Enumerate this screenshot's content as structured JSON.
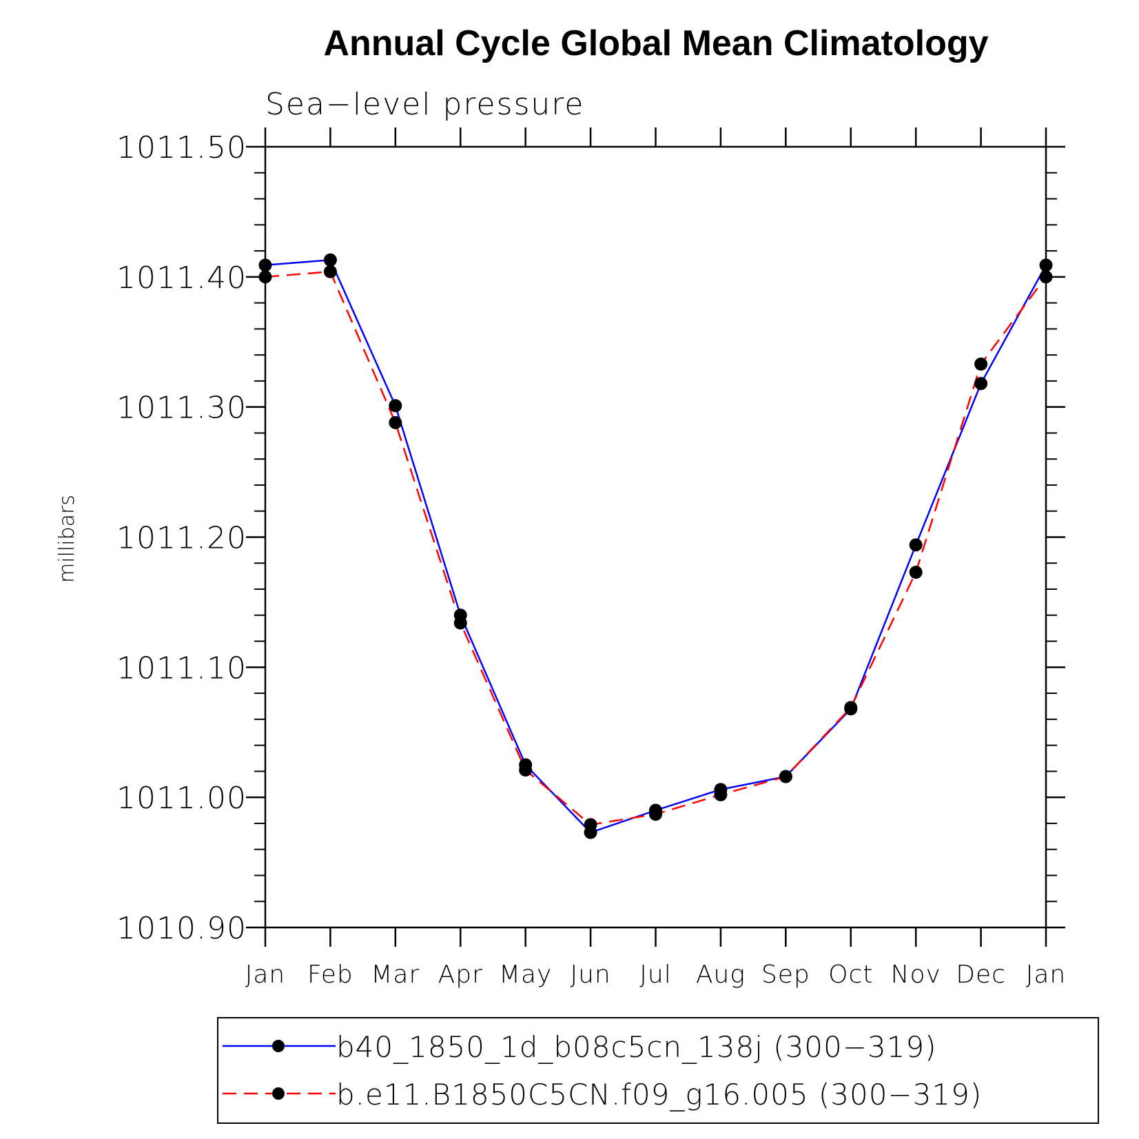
{
  "chart_data": {
    "type": "line",
    "title": "Annual Cycle Global Mean Climatology",
    "subtitle": "Sea−level pressure",
    "ylabel": "millibars",
    "xlabel": "",
    "categories": [
      "Jan",
      "Feb",
      "Mar",
      "Apr",
      "May",
      "Jun",
      "Jul",
      "Aug",
      "Sep",
      "Oct",
      "Nov",
      "Dec",
      "Jan"
    ],
    "ylim": [
      1010.9,
      1011.5
    ],
    "yticks": [
      "1010.90",
      "1011.00",
      "1011.10",
      "1011.20",
      "1011.30",
      "1011.40",
      "1011.50"
    ],
    "grid": false,
    "legend_position": "bottom",
    "series": [
      {
        "name": "b40_1850_1d_b08c5cn_138j (300−319)",
        "color": "#0000ff",
        "dash": "solid",
        "marker": "filled-circle",
        "values": [
          1011.409,
          1011.413,
          1011.301,
          1011.14,
          1011.025,
          1010.973,
          1010.99,
          1011.006,
          1011.016,
          1011.068,
          1011.194,
          1011.318,
          1011.409
        ]
      },
      {
        "name": "b.e11.B1850C5CN.f09_g16.005 (300−319)",
        "color": "#ff0000",
        "dash": "dashed",
        "marker": "filled-circle",
        "values": [
          1011.4,
          1011.404,
          1011.288,
          1011.134,
          1011.021,
          1010.979,
          1010.987,
          1011.002,
          1011.016,
          1011.069,
          1011.173,
          1011.333,
          1011.4
        ]
      }
    ]
  }
}
